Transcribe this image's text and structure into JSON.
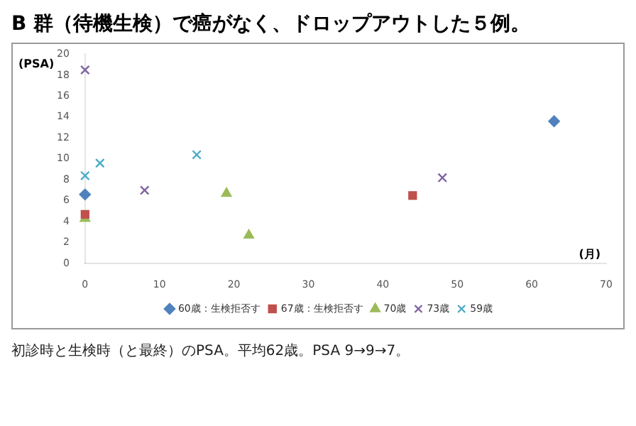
{
  "chart_data": {
    "type": "scatter",
    "title": "B 群（待機生検）で癌がなく、ドロップアウトした５例。",
    "xlabel": "(月)",
    "ylabel": "(PSA)",
    "xlim": [
      0,
      70
    ],
    "xticks": [
      0,
      10,
      20,
      30,
      40,
      50,
      60,
      70
    ],
    "ylim": [
      0,
      20
    ],
    "yticks": [
      0,
      2,
      4,
      6,
      8,
      10,
      12,
      14,
      16,
      18,
      20
    ],
    "grid": false,
    "legend": "bottom",
    "annotations": [
      "初診時と生検時（と最終）のPSA。平均62歳。PSA 9→9→7。"
    ],
    "series": [
      {
        "name": "60歳：生検拒否す",
        "color": "#4f81bd",
        "marker": "diamond",
        "x": [
          0,
          63
        ],
        "values": [
          6.6,
          13.6
        ]
      },
      {
        "name": "67歳：生検拒否す",
        "color": "#c0504d",
        "marker": "square",
        "x": [
          0,
          44
        ],
        "values": [
          4.7,
          6.5
        ]
      },
      {
        "name": "70歳",
        "color": "#9bbb59",
        "marker": "triangle",
        "x": [
          0,
          19,
          22
        ],
        "values": [
          4.3,
          6.7,
          2.7
        ]
      },
      {
        "name": "73歳",
        "color": "#8064a2",
        "marker": "cross",
        "x": [
          0,
          8,
          48
        ],
        "values": [
          18.5,
          7,
          8.2
        ]
      },
      {
        "name": "59歳",
        "color": "#4bacc6",
        "marker": "cross",
        "x": [
          0,
          2,
          15
        ],
        "values": [
          8.4,
          9.6,
          10.4
        ]
      }
    ]
  }
}
